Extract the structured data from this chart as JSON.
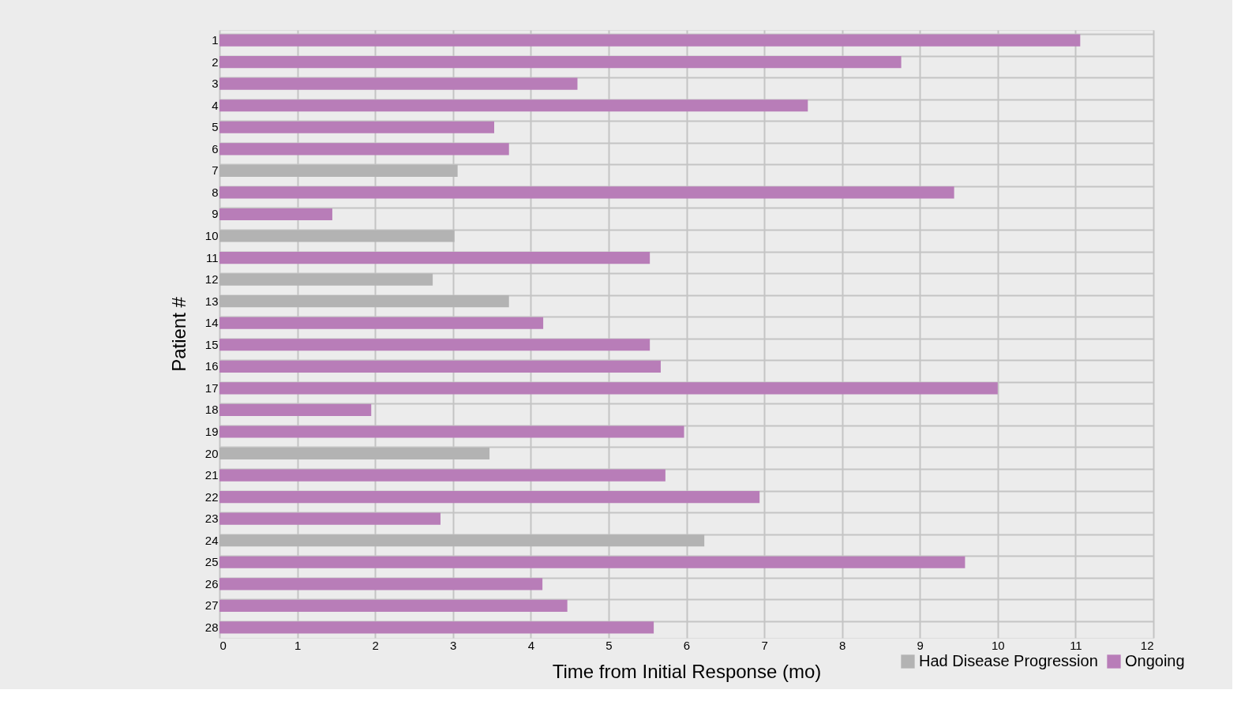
{
  "chart_data": {
    "type": "bar",
    "orientation": "horizontal",
    "xlabel": "Time from Initial Response (mo)",
    "ylabel": "Patient #",
    "categories": [
      "1",
      "2",
      "3",
      "4",
      "5",
      "6",
      "7",
      "8",
      "9",
      "10",
      "11",
      "12",
      "13",
      "14",
      "15",
      "16",
      "17",
      "18",
      "19",
      "20",
      "21",
      "22",
      "23",
      "24",
      "25",
      "26",
      "27",
      "28"
    ],
    "series": [
      {
        "name": "Had Disease Progression",
        "color": "#b3b3b3",
        "values": [
          null,
          null,
          null,
          null,
          null,
          null,
          3.06,
          null,
          null,
          3.02,
          null,
          2.74,
          3.72,
          null,
          null,
          null,
          null,
          null,
          null,
          3.47,
          null,
          null,
          null,
          6.23,
          null,
          null,
          null,
          null
        ]
      },
      {
        "name": "Ongoing",
        "color": "#b87db8",
        "values": [
          11.06,
          8.76,
          4.6,
          7.56,
          3.53,
          3.72,
          null,
          9.44,
          1.45,
          null,
          5.53,
          null,
          null,
          4.16,
          5.53,
          5.67,
          10.0,
          1.95,
          5.97,
          null,
          5.73,
          6.94,
          2.84,
          null,
          9.58,
          4.15,
          4.47,
          5.58
        ]
      }
    ],
    "xlim": [
      0,
      12
    ],
    "xticks": [
      0,
      1,
      2,
      3,
      4,
      5,
      6,
      7,
      8,
      9,
      10,
      11,
      12
    ],
    "grid": true,
    "legend": "bottom right"
  }
}
